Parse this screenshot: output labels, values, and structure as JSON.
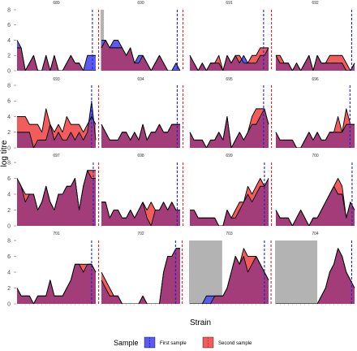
{
  "chart_data": {
    "type": "area",
    "xlabel": "Strain",
    "ylabel": "log titre",
    "ylim": [
      0,
      8
    ],
    "yticks": [
      0,
      2,
      4,
      6,
      8
    ],
    "grid": false,
    "legend": {
      "title": "Sample",
      "position": "bottom",
      "entries": [
        {
          "label": "First sample",
          "color": "#3333ff"
        },
        {
          "label": "Second sample",
          "color": "#ff3333"
        }
      ]
    },
    "colors": {
      "first_fill": "#5b5bf0",
      "second_fill": "#f25c5c",
      "overlap_fill": "#a33d7a",
      "first_line": "#1f1fe0",
      "second_line": "#e82020",
      "grey_band": "#b3b3b3"
    },
    "n_strains": 20,
    "panels": [
      {
        "id": "689",
        "first": [
          4,
          3,
          0,
          1,
          2,
          0,
          0,
          2,
          0,
          2,
          0,
          0,
          1,
          2,
          1,
          1,
          0,
          2,
          2,
          2
        ],
        "second": [
          3,
          3,
          0,
          1,
          2,
          0,
          0,
          2,
          0,
          2,
          0,
          0,
          1,
          2,
          1,
          1,
          0,
          0,
          0,
          0
        ],
        "line1": 18.2,
        "line2": 19.7
      },
      {
        "id": "690",
        "first": [
          4,
          4,
          3,
          4,
          4,
          3,
          2,
          3,
          1,
          2,
          2,
          1,
          0,
          1,
          2,
          1,
          0,
          0,
          1,
          0
        ],
        "second": [
          3,
          4,
          3,
          3,
          3,
          3,
          2,
          3,
          1,
          1,
          2,
          1,
          0,
          1,
          2,
          1,
          0,
          0,
          0,
          0
        ],
        "grey": [
          0,
          0.6
        ],
        "line1": 18.3,
        "line2": 19.7
      },
      {
        "id": "691",
        "first": [
          2,
          1,
          0,
          1,
          0,
          1,
          1,
          1,
          0,
          2,
          1,
          2,
          1,
          2,
          1,
          1,
          1,
          2,
          2,
          3
        ],
        "second": [
          2,
          1,
          0,
          1,
          0,
          1,
          1,
          2,
          0,
          2,
          1,
          2,
          2,
          1,
          1,
          2,
          2,
          3,
          3,
          3
        ],
        "line1": 17.8,
        "line2": 19.7
      },
      {
        "id": "692",
        "first": [
          2,
          1,
          1,
          1,
          0,
          1,
          0,
          1,
          2,
          0,
          2,
          1,
          1,
          1,
          1,
          1,
          1,
          0,
          0,
          1
        ],
        "second": [
          2,
          2,
          1,
          1,
          0,
          1,
          0,
          1,
          2,
          0,
          2,
          1,
          1,
          2,
          2,
          2,
          2,
          1,
          0,
          1
        ],
        "line1": 18.3,
        "line2": 19.7
      },
      {
        "id": "693",
        "first": [
          2,
          2,
          2,
          2,
          0,
          1,
          1,
          1,
          3,
          1,
          2,
          1,
          1,
          2,
          1,
          2,
          1,
          2,
          6,
          1
        ],
        "second": [
          4,
          4,
          4,
          3,
          3,
          3,
          2,
          5,
          3,
          2,
          3,
          2,
          4,
          3,
          3,
          3,
          2,
          3,
          4,
          3
        ],
        "line1": 18.0,
        "line2": 19.7
      },
      {
        "id": "694",
        "first": [
          3,
          2,
          1,
          1,
          1,
          2,
          2,
          1,
          2,
          1,
          3,
          1,
          2,
          2,
          3,
          2,
          2,
          3,
          3,
          3
        ],
        "second": [
          3,
          2,
          1,
          1,
          1,
          2,
          2,
          1,
          2,
          1,
          3,
          1,
          2,
          2,
          3,
          2,
          2,
          3,
          3,
          3
        ],
        "line1": 18.3,
        "line2": 19.7
      },
      {
        "id": "695",
        "first": [
          2,
          1,
          1,
          1,
          0,
          1,
          1,
          2,
          1,
          4,
          0,
          1,
          2,
          1,
          2,
          3,
          3,
          4,
          5,
          3
        ],
        "second": [
          2,
          1,
          1,
          1,
          0,
          1,
          1,
          2,
          1,
          4,
          0,
          1,
          2,
          1,
          2,
          4,
          5,
          5,
          5,
          3
        ],
        "line1": 17.8,
        "line2": 19.7
      },
      {
        "id": "696",
        "first": [
          2,
          1,
          1,
          1,
          1,
          0,
          0,
          1,
          2,
          1,
          2,
          1,
          1,
          2,
          2,
          2,
          2,
          3,
          3,
          3
        ],
        "second": [
          2,
          1,
          1,
          1,
          1,
          0,
          0,
          1,
          2,
          1,
          2,
          1,
          1,
          2,
          2,
          4,
          2,
          5,
          3,
          3
        ],
        "line1": 17.9,
        "line2": 19.7
      },
      {
        "id": "697",
        "first": [
          6,
          5,
          3,
          4,
          4,
          2,
          3,
          5,
          3,
          2,
          4,
          4,
          5,
          5,
          6,
          2,
          5,
          7,
          6,
          6
        ],
        "second": [
          6,
          5,
          4,
          4,
          4,
          2,
          3,
          5,
          3,
          2,
          4,
          4,
          5,
          5,
          6,
          2,
          5,
          7,
          7,
          7
        ],
        "line1": 18.4,
        "line2": 19.7
      },
      {
        "id": "698",
        "first": [
          3,
          3,
          1,
          2,
          2,
          1,
          1,
          2,
          1,
          2,
          3,
          1,
          0,
          2,
          2,
          3,
          2,
          3,
          2,
          2
        ],
        "second": [
          3,
          3,
          1,
          2,
          2,
          1,
          1,
          2,
          1,
          2,
          3,
          2,
          3,
          2,
          2,
          3,
          2,
          3,
          2,
          2
        ],
        "line1": 18.3,
        "line2": 19.7
      },
      {
        "id": "699",
        "first": [
          2,
          2,
          1,
          1,
          1,
          1,
          1,
          0,
          0,
          2,
          1,
          1,
          2,
          3,
          4,
          3,
          4,
          5,
          5,
          6
        ],
        "second": [
          2,
          2,
          1,
          1,
          1,
          1,
          1,
          0,
          0,
          2,
          1,
          2,
          3,
          3,
          5,
          4,
          5,
          6,
          5,
          6
        ],
        "line1": 18.0,
        "line2": 19.7
      },
      {
        "id": "700",
        "first": [
          2,
          1,
          1,
          1,
          0,
          1,
          2,
          1,
          0,
          1,
          1,
          2,
          3,
          4,
          5,
          4,
          4,
          1,
          3,
          2
        ],
        "second": [
          2,
          1,
          1,
          1,
          0,
          1,
          2,
          1,
          0,
          1,
          1,
          2,
          3,
          4,
          5,
          6,
          5,
          1,
          3,
          2
        ],
        "line1": 18.4,
        "line2": 19.8
      },
      {
        "id": "701",
        "first": [
          2,
          1,
          1,
          1,
          0,
          1,
          1,
          1,
          3,
          1,
          1,
          1,
          2,
          3,
          5,
          5,
          4,
          5,
          5,
          4
        ],
        "second": [
          2,
          1,
          1,
          1,
          0,
          1,
          1,
          1,
          3,
          1,
          1,
          1,
          2,
          3,
          5,
          5,
          5,
          5,
          5,
          4
        ],
        "line1": 18.0,
        "line2": 19.7
      },
      {
        "id": "702",
        "first": [
          3,
          2,
          1,
          1,
          1,
          0,
          0,
          0,
          0,
          0,
          1,
          0,
          0,
          0,
          0,
          4,
          6,
          6,
          7,
          7
        ],
        "second": [
          4,
          3,
          2,
          1,
          1,
          0,
          0,
          0,
          0,
          0,
          1,
          0,
          0,
          0,
          0,
          4,
          6,
          6,
          7,
          7
        ],
        "line1": 17.9,
        "line2": 19.5
      },
      {
        "id": "703",
        "first": [
          0,
          0,
          0,
          0,
          1,
          1,
          1,
          1,
          1,
          2,
          4,
          6,
          5,
          6,
          4,
          5,
          6,
          5,
          4,
          3
        ],
        "second": [
          0,
          0,
          0,
          0,
          0,
          0,
          1,
          1,
          1,
          2,
          4,
          6,
          5,
          7,
          6,
          6,
          6,
          5,
          4,
          3
        ],
        "grey": [
          0,
          7.8
        ],
        "line1": 18.0,
        "line2": 19.6
      },
      {
        "id": "704",
        "first": [
          0,
          0,
          0,
          0,
          0,
          0,
          0,
          0,
          0,
          0,
          0,
          1,
          2,
          4,
          5,
          7,
          6,
          4,
          3,
          2
        ],
        "second": [
          0,
          0,
          0,
          0,
          0,
          0,
          0,
          0,
          0,
          0,
          0,
          1,
          2,
          4,
          5,
          7,
          6,
          4,
          3,
          2
        ],
        "grey": [
          0,
          10.0
        ],
        "line1": 18.3,
        "line2": 19.7
      }
    ]
  }
}
